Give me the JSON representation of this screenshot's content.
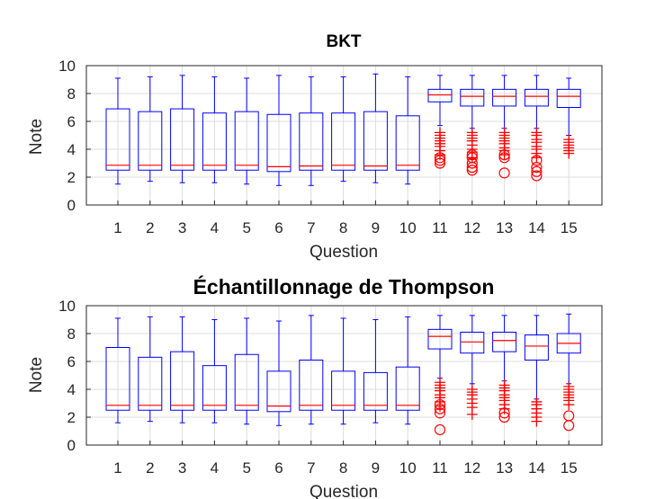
{
  "chart_data": [
    {
      "type": "box",
      "title": "BKT",
      "xlabel": "Question",
      "ylabel": "Note",
      "ylim": [
        0,
        10
      ],
      "yticks": [
        0,
        2,
        4,
        6,
        8,
        10
      ],
      "grid": true,
      "categories": [
        "1",
        "2",
        "3",
        "4",
        "5",
        "6",
        "7",
        "8",
        "9",
        "10",
        "11",
        "12",
        "13",
        "14",
        "15"
      ],
      "boxes": [
        {
          "label": "1",
          "whisker_low": 1.5,
          "q1": 2.5,
          "median": 2.85,
          "q3": 6.9,
          "whisker_high": 9.1,
          "outliers": [],
          "outlier_circles": []
        },
        {
          "label": "2",
          "whisker_low": 1.7,
          "q1": 2.5,
          "median": 2.85,
          "q3": 6.7,
          "whisker_high": 9.2,
          "outliers": [],
          "outlier_circles": []
        },
        {
          "label": "3",
          "whisker_low": 1.6,
          "q1": 2.5,
          "median": 2.85,
          "q3": 6.9,
          "whisker_high": 9.3,
          "outliers": [],
          "outlier_circles": []
        },
        {
          "label": "4",
          "whisker_low": 1.6,
          "q1": 2.5,
          "median": 2.85,
          "q3": 6.6,
          "whisker_high": 9.2,
          "outliers": [],
          "outlier_circles": []
        },
        {
          "label": "5",
          "whisker_low": 1.5,
          "q1": 2.5,
          "median": 2.85,
          "q3": 6.7,
          "whisker_high": 9.1,
          "outliers": [],
          "outlier_circles": []
        },
        {
          "label": "6",
          "whisker_low": 1.4,
          "q1": 2.4,
          "median": 2.75,
          "q3": 6.5,
          "whisker_high": 9.3,
          "outliers": [],
          "outlier_circles": []
        },
        {
          "label": "7",
          "whisker_low": 1.4,
          "q1": 2.5,
          "median": 2.8,
          "q3": 6.6,
          "whisker_high": 9.2,
          "outliers": [],
          "outlier_circles": []
        },
        {
          "label": "8",
          "whisker_low": 1.7,
          "q1": 2.5,
          "median": 2.85,
          "q3": 6.6,
          "whisker_high": 9.2,
          "outliers": [],
          "outlier_circles": []
        },
        {
          "label": "9",
          "whisker_low": 1.6,
          "q1": 2.5,
          "median": 2.8,
          "q3": 6.7,
          "whisker_high": 9.4,
          "outliers": [],
          "outlier_circles": []
        },
        {
          "label": "10",
          "whisker_low": 1.5,
          "q1": 2.5,
          "median": 2.85,
          "q3": 6.4,
          "whisker_high": 9.2,
          "outliers": [],
          "outlier_circles": []
        },
        {
          "label": "11",
          "whisker_low": 5.7,
          "q1": 7.4,
          "median": 7.9,
          "q3": 8.3,
          "whisker_high": 9.3,
          "outliers": [
            3.6,
            3.9,
            4.2,
            4.4,
            4.6,
            4.8,
            5.0,
            5.2
          ],
          "outlier_circles": [
            3.2,
            3.0,
            3.4
          ]
        },
        {
          "label": "12",
          "whisker_low": 5.5,
          "q1": 7.1,
          "median": 7.8,
          "q3": 8.3,
          "whisker_high": 9.3,
          "outliers": [
            3.4,
            3.8,
            4.0,
            4.3,
            4.6,
            4.8,
            5.0,
            5.2
          ],
          "outlier_circles": [
            2.5,
            2.7,
            3.0,
            3.4,
            3.6
          ]
        },
        {
          "label": "13",
          "whisker_low": 5.5,
          "q1": 7.1,
          "median": 7.8,
          "q3": 8.3,
          "whisker_high": 9.3,
          "outliers": [
            3.6,
            3.9,
            4.1,
            4.4,
            4.6,
            4.8,
            5.0,
            5.2
          ],
          "outlier_circles": [
            2.3,
            3.4,
            3.6
          ]
        },
        {
          "label": "14",
          "whisker_low": 5.5,
          "q1": 7.1,
          "median": 7.8,
          "q3": 8.3,
          "whisker_high": 9.3,
          "outliers": [
            3.4,
            3.7,
            4.0,
            4.2,
            4.5,
            4.7,
            5.0,
            5.2
          ],
          "outlier_circles": [
            2.1,
            2.4,
            2.7,
            3.2
          ]
        },
        {
          "label": "15",
          "whisker_low": 5.0,
          "q1": 7.0,
          "median": 7.8,
          "q3": 8.3,
          "whisker_high": 9.1,
          "outliers": [
            3.7,
            3.9,
            4.1,
            4.3,
            4.5,
            4.7
          ],
          "outlier_circles": []
        }
      ]
    },
    {
      "type": "box",
      "title": "Échantillonnage de Thompson",
      "xlabel": "Question",
      "ylabel": "Note",
      "ylim": [
        0,
        10
      ],
      "yticks": [
        0,
        2,
        4,
        6,
        8,
        10
      ],
      "grid": true,
      "categories": [
        "1",
        "2",
        "3",
        "4",
        "5",
        "6",
        "7",
        "8",
        "9",
        "10",
        "11",
        "12",
        "13",
        "14",
        "15"
      ],
      "boxes": [
        {
          "label": "1",
          "whisker_low": 1.6,
          "q1": 2.5,
          "median": 2.85,
          "q3": 7.0,
          "whisker_high": 9.1,
          "outliers": [],
          "outlier_circles": []
        },
        {
          "label": "2",
          "whisker_low": 1.7,
          "q1": 2.5,
          "median": 2.85,
          "q3": 6.3,
          "whisker_high": 9.2,
          "outliers": [],
          "outlier_circles": []
        },
        {
          "label": "3",
          "whisker_low": 1.6,
          "q1": 2.5,
          "median": 2.85,
          "q3": 6.7,
          "whisker_high": 9.2,
          "outliers": [],
          "outlier_circles": []
        },
        {
          "label": "4",
          "whisker_low": 1.6,
          "q1": 2.5,
          "median": 2.85,
          "q3": 5.7,
          "whisker_high": 9.0,
          "outliers": [],
          "outlier_circles": []
        },
        {
          "label": "5",
          "whisker_low": 1.5,
          "q1": 2.5,
          "median": 2.85,
          "q3": 6.5,
          "whisker_high": 9.1,
          "outliers": [],
          "outlier_circles": []
        },
        {
          "label": "6",
          "whisker_low": 1.4,
          "q1": 2.4,
          "median": 2.8,
          "q3": 5.3,
          "whisker_high": 8.9,
          "outliers": [],
          "outlier_circles": []
        },
        {
          "label": "7",
          "whisker_low": 1.5,
          "q1": 2.5,
          "median": 2.85,
          "q3": 6.1,
          "whisker_high": 9.3,
          "outliers": [],
          "outlier_circles": []
        },
        {
          "label": "8",
          "whisker_low": 1.5,
          "q1": 2.5,
          "median": 2.85,
          "q3": 5.3,
          "whisker_high": 9.1,
          "outliers": [],
          "outlier_circles": []
        },
        {
          "label": "9",
          "whisker_low": 1.6,
          "q1": 2.5,
          "median": 2.85,
          "q3": 5.2,
          "whisker_high": 9.0,
          "outliers": [],
          "outlier_circles": []
        },
        {
          "label": "10",
          "whisker_low": 1.5,
          "q1": 2.5,
          "median": 2.85,
          "q3": 5.6,
          "whisker_high": 9.2,
          "outliers": [],
          "outlier_circles": []
        },
        {
          "label": "11",
          "whisker_low": 4.8,
          "q1": 6.9,
          "median": 7.8,
          "q3": 8.3,
          "whisker_high": 9.3,
          "outliers": [
            2.8,
            3.1,
            3.4,
            3.6,
            3.9,
            4.1,
            4.3,
            4.5
          ],
          "outlier_circles": [
            1.1,
            2.3,
            2.6,
            2.9
          ]
        },
        {
          "label": "12",
          "whisker_low": 4.4,
          "q1": 6.6,
          "median": 7.4,
          "q3": 8.1,
          "whisker_high": 9.3,
          "outliers": [
            2.2,
            2.7,
            3.0,
            3.3,
            3.6,
            3.8,
            4.0
          ],
          "outlier_circles": []
        },
        {
          "label": "13",
          "whisker_low": 4.6,
          "q1": 6.7,
          "median": 7.5,
          "q3": 8.1,
          "whisker_high": 9.3,
          "outliers": [
            2.6,
            2.9,
            3.2,
            3.4,
            3.6,
            3.9,
            4.1,
            4.3
          ],
          "outlier_circles": [
            2.0,
            2.3
          ]
        },
        {
          "label": "14",
          "whisker_low": 3.3,
          "q1": 6.1,
          "median": 7.1,
          "q3": 7.9,
          "whisker_high": 9.3,
          "outliers": [
            1.7,
            2.0,
            2.3,
            2.6,
            2.9,
            3.1
          ],
          "outlier_circles": []
        },
        {
          "label": "15",
          "whisker_low": 4.4,
          "q1": 6.6,
          "median": 7.3,
          "q3": 8.0,
          "whisker_high": 9.4,
          "outliers": [
            2.9,
            3.2,
            3.4,
            3.6,
            3.8,
            4.0,
            4.2
          ],
          "outlier_circles": [
            1.4,
            2.1
          ]
        }
      ]
    }
  ]
}
